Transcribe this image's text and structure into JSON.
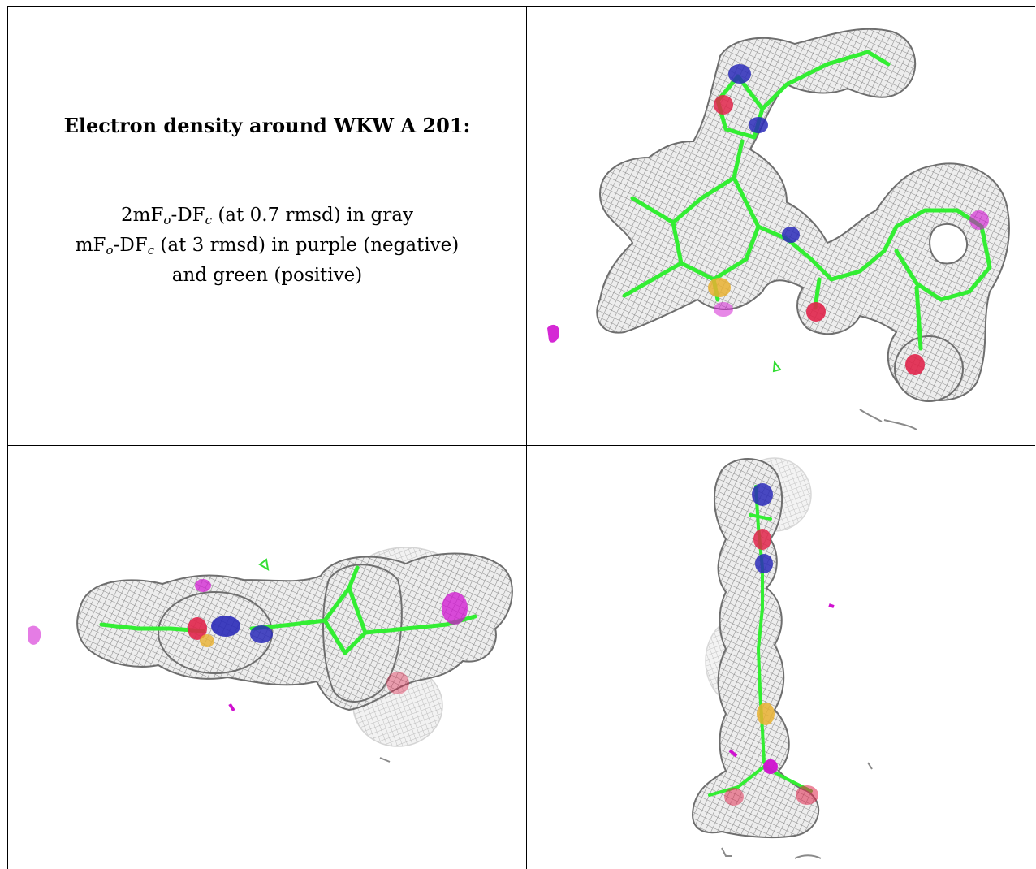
{
  "caption": {
    "title": "Electron density around WKW A 201:",
    "line1": {
      "lead": "2mF",
      "sub1": "o",
      "mid": "-DF",
      "sub2": "c",
      "tail": " (at 0.7 rmsd) in gray"
    },
    "line2": {
      "lead": "mF",
      "sub1": "o",
      "mid": "-DF",
      "sub2": "c",
      "tail": " (at 3 rmsd) in purple (negative)"
    },
    "line3": "and green (positive)"
  },
  "colors": {
    "mesh": "#8a8a8a",
    "carbon": "#33ee33",
    "nitrogen": "#2a2ab8",
    "oxygen": "#e0244a",
    "sulfur": "#e8b030",
    "negative": "#d011d0",
    "positive": "#33dd33"
  },
  "panels": [
    "density-view-top",
    "density-view-side",
    "density-view-end"
  ]
}
